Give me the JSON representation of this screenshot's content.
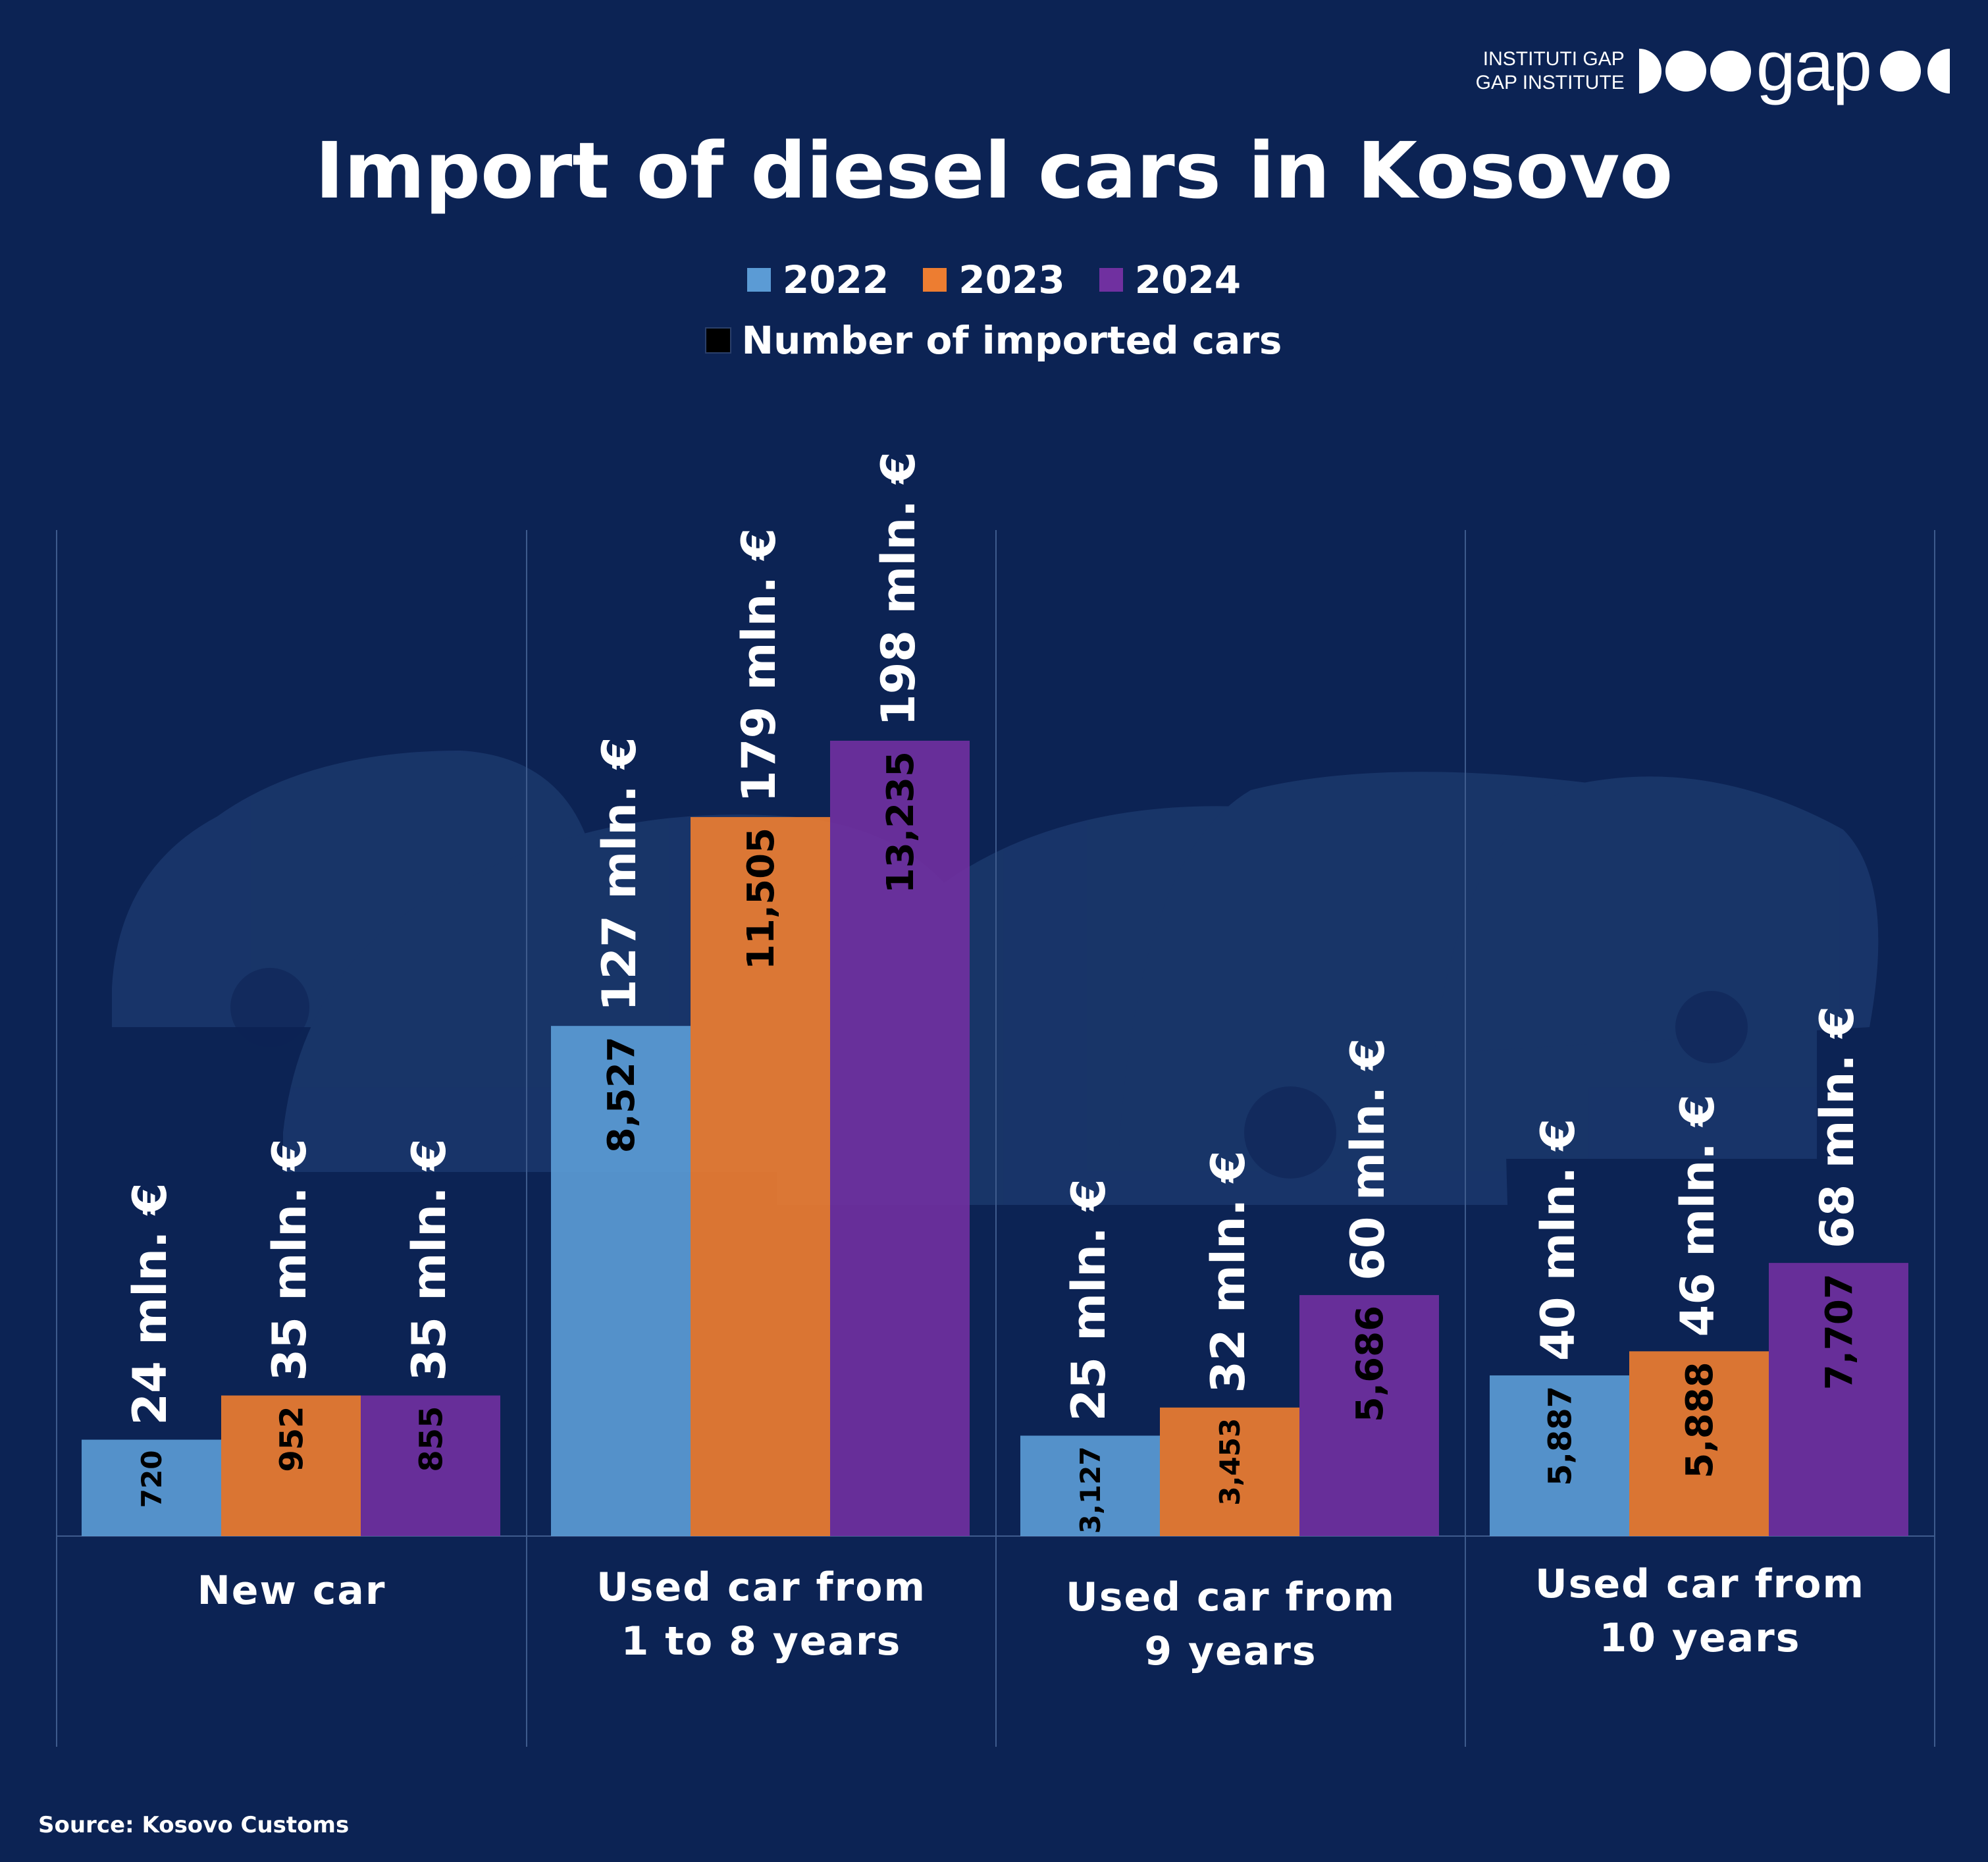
{
  "logo": {
    "line1": "INSTITUTI GAP",
    "line2": "GAP INSTITUTE",
    "wordmark": "gap"
  },
  "title": "Import of diesel cars in Kosovo",
  "legend": {
    "years": [
      {
        "label": "2022",
        "color": "#5b9bd5"
      },
      {
        "label": "2023",
        "color": "#ed7d31"
      },
      {
        "label": "2024",
        "color": "#7030a0"
      }
    ],
    "count_label": "Number of imported cars",
    "count_color": "#000000"
  },
  "source": "Source: Kosovo Customs",
  "chart_data": {
    "type": "bar",
    "categories": [
      "New car",
      "Used car from\n1 to 8 years",
      "Used car from\n9 years",
      "Used car from\n10 years"
    ],
    "value_unit": "mln. €",
    "series": [
      {
        "name": "2022",
        "color": "#5b9bd5",
        "values": [
          24,
          127,
          25,
          40
        ],
        "counts": [
          "720",
          "8,527",
          "3,127",
          "5,887"
        ]
      },
      {
        "name": "2023",
        "color": "#ed7d31",
        "values": [
          35,
          179,
          32,
          46
        ],
        "counts": [
          "952",
          "11,505",
          "3,453",
          "5,888"
        ]
      },
      {
        "name": "2024",
        "color": "#7030a0",
        "values": [
          35,
          198,
          60,
          68
        ],
        "counts": [
          "855",
          "13,235",
          "5,686",
          "7,707"
        ]
      }
    ],
    "ylim": [
      0,
      198
    ],
    "grid": false,
    "legend": "top-center"
  }
}
